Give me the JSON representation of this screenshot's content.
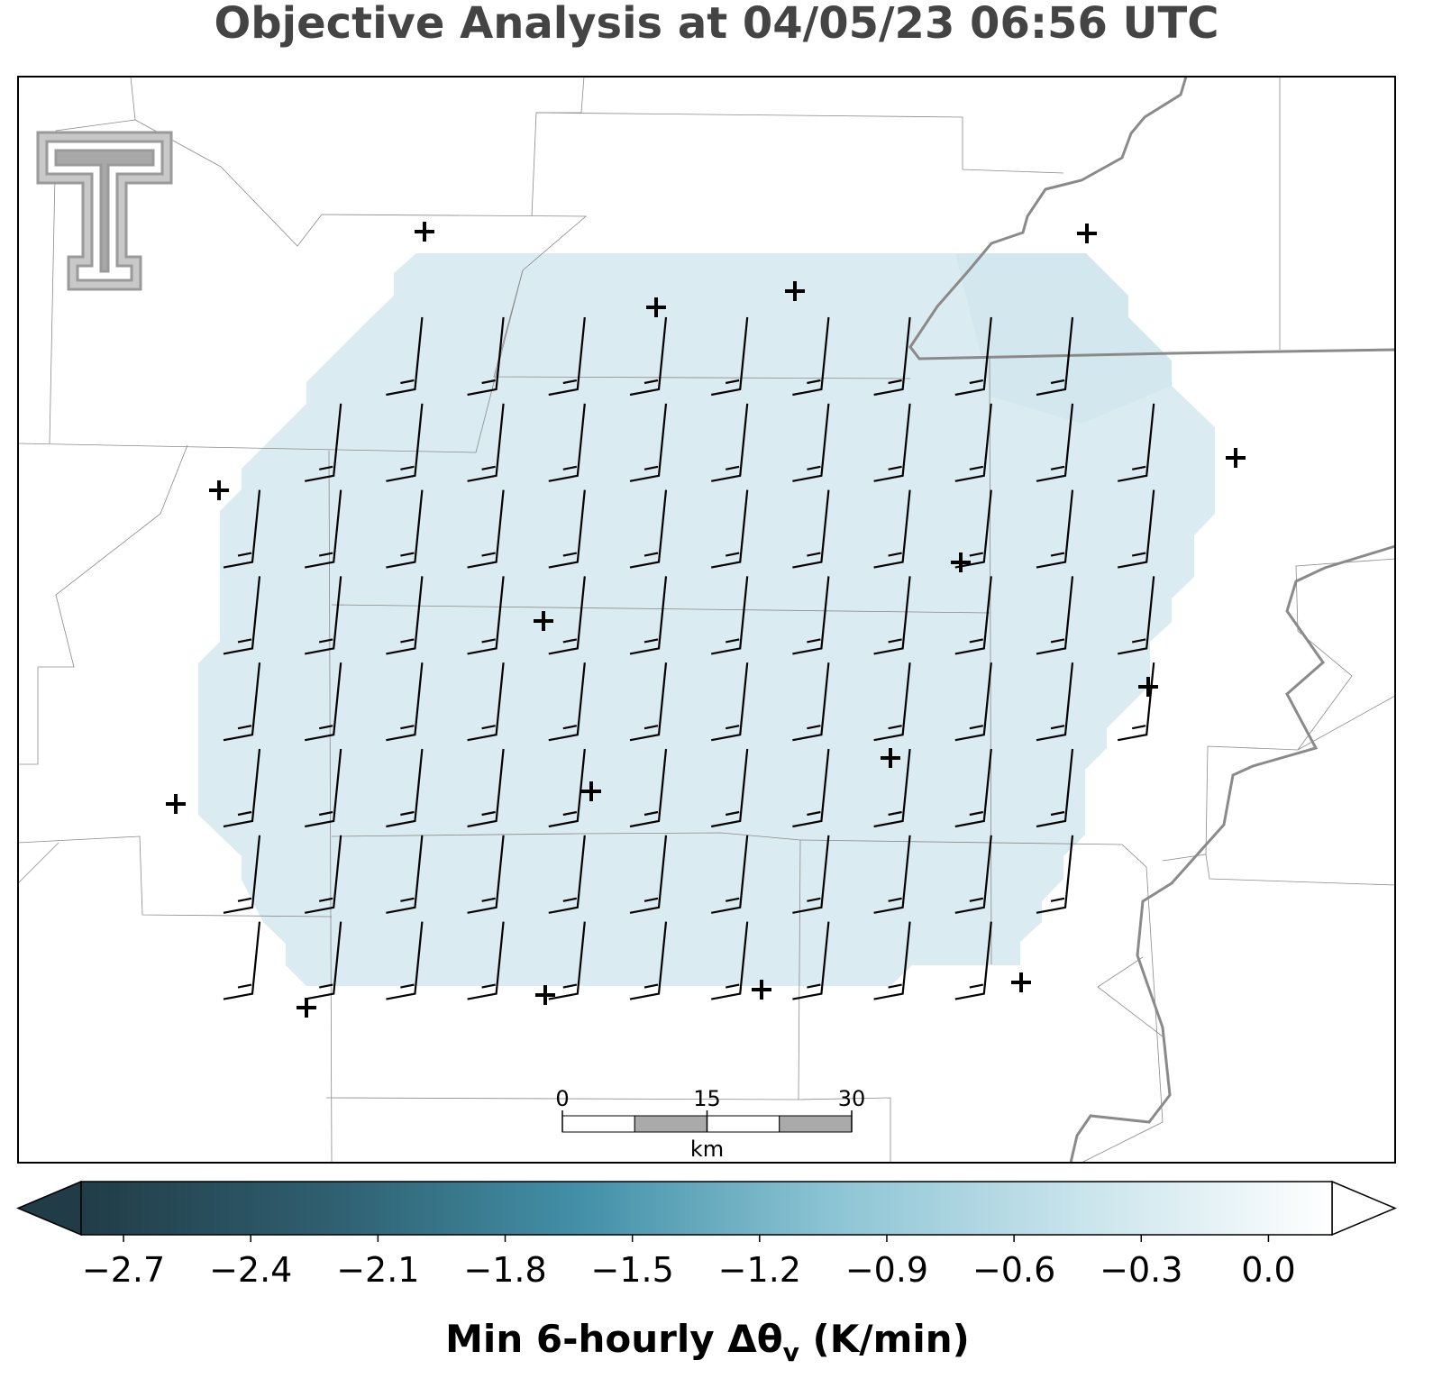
{
  "chart_data": {
    "type": "map",
    "title": "Objective Analysis at 04/05/23 06:56 UTC",
    "colorbar_label": [
      "Min 6-hourly Δθ",
      "v",
      " (K/min)"
    ],
    "clim": [
      -2.8,
      0.15
    ],
    "cticks": [
      {
        "value": -2.7,
        "label": "−2.7"
      },
      {
        "value": -2.4,
        "label": "−2.4"
      },
      {
        "value": -2.1,
        "label": "−2.1"
      },
      {
        "value": -1.8,
        "label": "−1.8"
      },
      {
        "value": -1.5,
        "label": "−1.5"
      },
      {
        "value": -1.2,
        "label": "−1.2"
      },
      {
        "value": -0.9,
        "label": "−0.9"
      },
      {
        "value": -0.6,
        "label": "−0.6"
      },
      {
        "value": -0.3,
        "label": "−0.3"
      },
      {
        "value": 0,
        "label": "0.0"
      }
    ],
    "colormap": [
      "#213c47",
      "#2f5f70",
      "#4390a8",
      "#8cc4d4",
      "#c9e4ec",
      "#ffffff"
    ],
    "scalebar": {
      "ticks": [
        0,
        15,
        30
      ],
      "unit": "km"
    }
  }
}
